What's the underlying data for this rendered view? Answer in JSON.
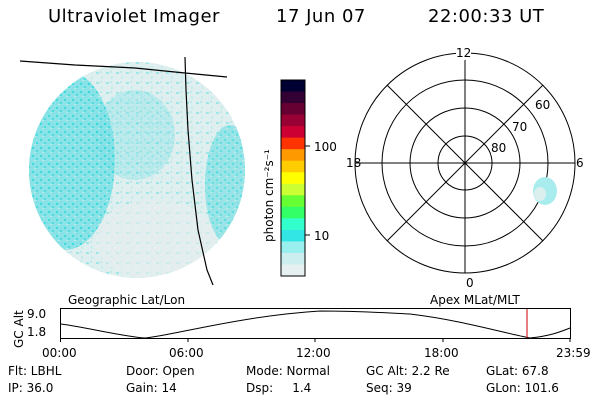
{
  "header": {
    "title": "Ultraviolet Imager",
    "date": "17 Jun 07",
    "time": "22:00:33 UT"
  },
  "left_panel": {
    "label": "Geographic Lat/Lon"
  },
  "colorbar": {
    "unit_label": "photon cm⁻²s⁻¹",
    "ticks": [
      "100",
      "10"
    ],
    "colors": [
      "#000033",
      "#330033",
      "#660033",
      "#990033",
      "#cc0033",
      "#ff3300",
      "#ff9900",
      "#ffcc00",
      "#ffff00",
      "#ccff33",
      "#66ff33",
      "#33ff66",
      "#33ffcc",
      "#33e6e6",
      "#99eeee",
      "#cceeee",
      "#e6f0f0"
    ]
  },
  "polar_plot": {
    "label": "Apex MLat/MLT",
    "mlt_labels": {
      "top": "12",
      "left": "18",
      "right": "6",
      "bottom": "0"
    },
    "mlat_labels": [
      "60",
      "70",
      "80"
    ]
  },
  "timeline": {
    "ylabel": "GC Alt",
    "ytick_top": "9.0",
    "ytick_bottom": "1.8",
    "xticks": [
      "00:00",
      "06:00",
      "12:00",
      "18:00",
      "23:59"
    ]
  },
  "status": {
    "flt": "Flt: LBHL",
    "door": "Door: Open",
    "mode": "Mode: Normal",
    "gc_alt": "GC Alt: 2.2 Re",
    "glat": "GLat:  67.8",
    "ip": "IP: 36.0",
    "gain": "Gain: 14",
    "dsp": "Dsp:     1.4",
    "seq": "Seq: 39",
    "glon": "GLon: 101.6"
  }
}
